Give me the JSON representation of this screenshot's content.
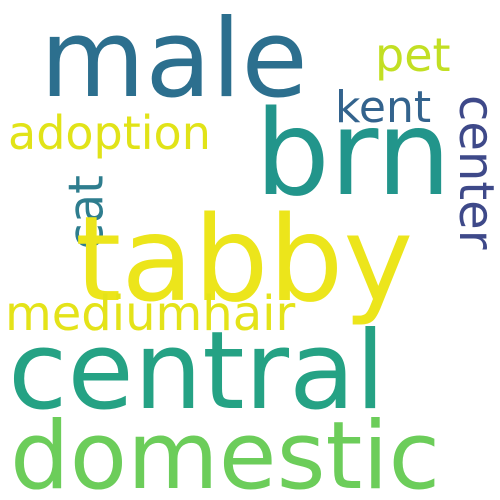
{
  "words": {
    "male": {
      "text": "male",
      "color": "#2c6f8e"
    },
    "brn": {
      "text": "brn",
      "color": "#22958b"
    },
    "tabby": {
      "text": "tabby",
      "color": "#ece51b"
    },
    "central": {
      "text": "central",
      "color": "#25a284"
    },
    "domestic": {
      "text": "domestic",
      "color": "#6ccd5a"
    },
    "adoption": {
      "text": "adoption",
      "color": "#e1e318"
    },
    "mediumhair": {
      "text": "mediumhair",
      "color": "#e4e319"
    },
    "kent": {
      "text": "kent",
      "color": "#33638d"
    },
    "pet": {
      "text": "pet",
      "color": "#c2df23"
    },
    "cat": {
      "text": "cat",
      "color": "#2e7d8e"
    },
    "center": {
      "text": "center",
      "color": "#3e4989"
    }
  },
  "background_color": "#ffffff"
}
